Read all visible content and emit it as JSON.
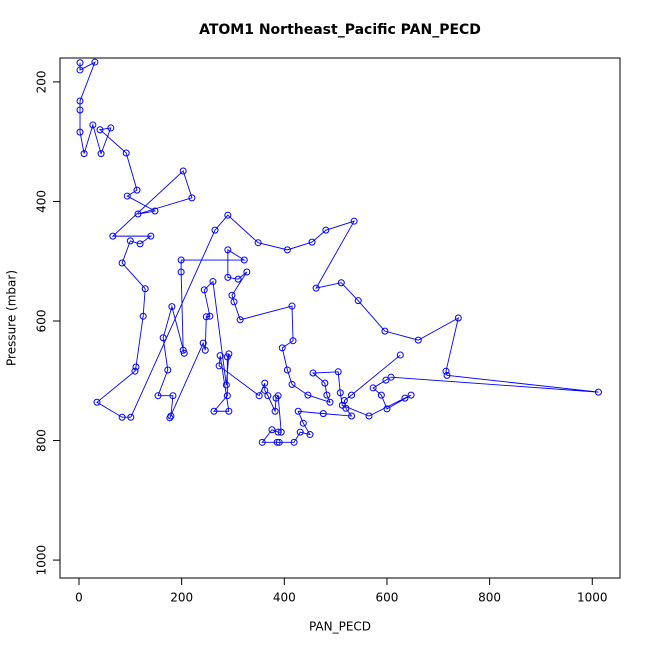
{
  "chart_data": {
    "type": "line",
    "markers": true,
    "title": "ATOM1 Northeast_Pacific PAN_PECD",
    "x_label": "PAN_PECD",
    "y_label": "Pressure (mbar)",
    "color": "#0000ff",
    "xlim": [
      -37,
      1054
    ],
    "ylim": [
      1030,
      160
    ],
    "xticks": [
      0,
      200,
      400,
      600,
      800,
      1000
    ],
    "yticks": [
      200,
      400,
      600,
      800,
      1000
    ],
    "x": [
      2,
      2,
      31,
      2,
      2,
      2,
      10,
      27,
      43,
      62,
      41,
      92,
      113,
      94,
      148,
      115,
      220,
      203,
      66,
      140,
      119,
      100,
      84,
      129,
      125,
      111,
      109,
      35,
      84,
      101,
      265,
      290,
      349,
      406,
      454,
      481,
      536,
      462,
      511,
      544,
      596,
      661,
      739,
      715,
      717,
      1012,
      608,
      598,
      573,
      589,
      600,
      647,
      635,
      565,
      513,
      509,
      505,
      456,
      479,
      483,
      489,
      446,
      415,
      406,
      396,
      417,
      415,
      314,
      302,
      298,
      327,
      310,
      290,
      290,
      322,
      199,
      199,
      203,
      205,
      181,
      164,
      173,
      154,
      183,
      179,
      177,
      242,
      246,
      248,
      255,
      244,
      261,
      287,
      292,
      289,
      289,
      263,
      292,
      275,
      273,
      351,
      362,
      362,
      368,
      382,
      384,
      388,
      394,
      388,
      376,
      357,
      386,
      390,
      419,
      431,
      450,
      437,
      427,
      476,
      531,
      520,
      517,
      531,
      626
    ],
    "values": [
      168,
      180,
      167,
      232,
      247,
      284,
      320,
      272,
      320,
      277,
      280,
      319,
      381,
      391,
      416,
      421,
      394,
      349,
      458,
      458,
      471,
      466,
      503,
      546,
      592,
      677,
      684,
      736,
      761,
      761,
      448,
      423,
      469,
      481,
      468,
      448,
      433,
      545,
      536,
      566,
      617,
      632,
      595,
      684,
      691,
      719,
      694,
      699,
      712,
      724,
      747,
      724,
      729,
      759,
      741,
      720,
      685,
      687,
      704,
      724,
      736,
      724,
      706,
      682,
      645,
      633,
      575,
      598,
      568,
      557,
      518,
      530,
      527,
      481,
      498,
      498,
      518,
      649,
      654,
      576,
      628,
      682,
      725,
      725,
      759,
      762,
      637,
      649,
      593,
      592,
      548,
      534,
      707,
      655,
      660,
      725,
      751,
      751,
      658,
      675,
      725,
      704,
      716,
      725,
      751,
      729,
      725,
      786,
      786,
      782,
      803,
      803,
      803,
      803,
      786,
      790,
      771,
      751,
      755,
      759,
      746,
      733,
      724,
      657
    ]
  }
}
